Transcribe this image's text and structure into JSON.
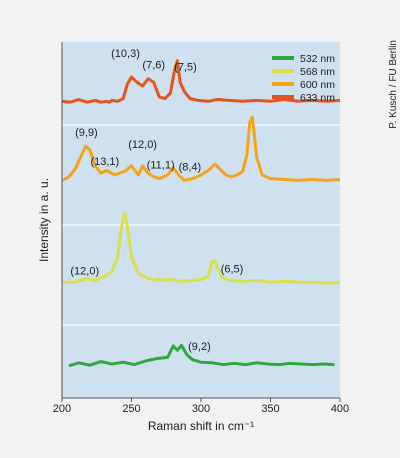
{
  "credit": "P. Kusch / FU Berlin",
  "chart_data": {
    "type": "line",
    "xlabel": "Raman shift in cm⁻¹",
    "ylabel": "Intensity in a. u.",
    "xlim": [
      200,
      400
    ],
    "x_ticks": [
      200,
      250,
      300,
      350,
      400
    ],
    "grid": "horizontal",
    "legend_position": "top-right",
    "colors": {
      "plot_bg": "#cfe0ef",
      "grid": "#ffffff",
      "axis": "#555555"
    },
    "series": [
      {
        "name": "532 nm",
        "color": "#2eaa3c",
        "x": [
          205,
          212,
          220,
          228,
          236,
          244,
          252,
          260,
          268,
          276,
          280,
          283,
          286,
          290,
          294,
          300,
          308,
          316,
          324,
          332,
          340,
          348,
          356,
          364,
          372,
          380,
          388,
          396
        ],
        "y": [
          0.2,
          0.7,
          0.3,
          0.9,
          0.5,
          0.8,
          0.4,
          1.0,
          1.4,
          1.6,
          3.5,
          2.8,
          3.6,
          2.0,
          1.2,
          0.8,
          0.7,
          0.4,
          0.6,
          0.4,
          0.7,
          0.5,
          0.4,
          0.6,
          0.5,
          0.4,
          0.5,
          0.4
        ]
      },
      {
        "name": "568 nm",
        "color": "#d9e04a",
        "x": [
          200,
          210,
          218,
          224,
          230,
          236,
          240,
          243,
          245,
          247,
          250,
          255,
          262,
          270,
          278,
          286,
          294,
          300,
          305,
          308,
          310,
          312,
          315,
          320,
          330,
          340,
          350,
          360,
          370,
          380,
          390,
          400
        ],
        "y": [
          0.2,
          0.2,
          0.6,
          0.4,
          0.8,
          1.4,
          3.0,
          6.5,
          7.8,
          6.5,
          3.0,
          1.2,
          0.6,
          0.4,
          0.5,
          0.3,
          0.4,
          0.5,
          0.8,
          2.5,
          2.6,
          1.8,
          0.8,
          0.4,
          0.3,
          0.4,
          0.2,
          0.3,
          0.2,
          0.2,
          0.1,
          0.2
        ]
      },
      {
        "name": "600 nm",
        "color": "#f2a51a",
        "x": [
          200,
          205,
          210,
          214,
          217,
          220,
          224,
          228,
          232,
          238,
          245,
          250,
          255,
          258,
          262,
          266,
          270,
          276,
          280,
          284,
          288,
          294,
          300,
          306,
          310,
          314,
          318,
          322,
          326,
          330,
          333,
          335,
          337,
          340,
          344,
          350,
          360,
          370,
          380,
          390,
          400
        ],
        "y": [
          0.4,
          0.8,
          1.8,
          3.2,
          4.2,
          3.8,
          2.0,
          1.2,
          1.5,
          1.0,
          1.4,
          2.0,
          1.0,
          2.0,
          1.2,
          0.8,
          0.6,
          1.0,
          1.8,
          1.0,
          0.4,
          0.6,
          1.0,
          1.6,
          2.2,
          1.6,
          1.0,
          0.8,
          1.0,
          1.4,
          3.2,
          6.8,
          7.4,
          3.0,
          1.0,
          0.6,
          0.5,
          0.4,
          0.5,
          0.4,
          0.5
        ]
      },
      {
        "name": "633 nm",
        "color": "#e2561f",
        "x": [
          200,
          206,
          212,
          218,
          224,
          228,
          232,
          234,
          236,
          240,
          244,
          247,
          250,
          254,
          258,
          262,
          266,
          270,
          274,
          278,
          281,
          283,
          285,
          288,
          292,
          298,
          305,
          312,
          320,
          330,
          340,
          350,
          360,
          370,
          380,
          390,
          400
        ],
        "y": [
          0.3,
          0.2,
          0.5,
          0.2,
          0.4,
          0.2,
          0.3,
          0.2,
          0.4,
          0.3,
          0.6,
          2.2,
          3.0,
          2.4,
          2.0,
          2.8,
          2.4,
          0.8,
          0.6,
          1.2,
          3.8,
          4.8,
          2.4,
          1.4,
          0.6,
          0.4,
          0.3,
          0.5,
          0.4,
          0.3,
          0.4,
          0.3,
          0.5,
          0.3,
          0.4,
          0.3,
          0.4
        ]
      }
    ],
    "annotations": [
      {
        "text": "(10,3)",
        "x": 250,
        "series": "633 nm"
      },
      {
        "text": "(7,6)",
        "x": 266,
        "series": "633 nm"
      },
      {
        "text": "(7,5)",
        "x": 286,
        "series": "633 nm"
      },
      {
        "text": "(9,9)",
        "x": 219,
        "series": "600 nm"
      },
      {
        "text": "(13,1)",
        "x": 238,
        "series": "600 nm"
      },
      {
        "text": "(12,0)",
        "x": 258,
        "series": "600 nm"
      },
      {
        "text": "(11,1)",
        "x": 271,
        "series": "600 nm"
      },
      {
        "text": "(8,4)",
        "x": 292,
        "series": "600 nm"
      },
      {
        "text": "(12,0)",
        "x": 225,
        "series": "568 nm"
      },
      {
        "text": "(6,5)",
        "x": 318,
        "series": "568 nm"
      },
      {
        "text": "(9,2)",
        "x": 296,
        "series": "532 nm"
      }
    ]
  }
}
